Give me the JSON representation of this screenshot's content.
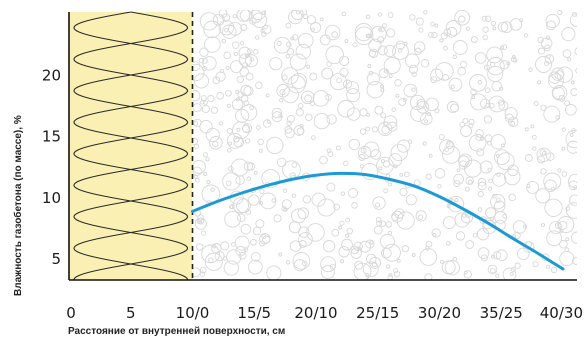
{
  "chart_data": {
    "type": "line",
    "title": "",
    "xlabel": "Расстояние от внутренней поверхности, см",
    "ylabel": "Влажность газобетона (по массе), %",
    "x_ticks": [
      "0",
      "5",
      "10/0",
      "15/5",
      "20/10",
      "25/15",
      "30/20",
      "35/25",
      "40/30"
    ],
    "y_ticks": [
      "5",
      "10",
      "15",
      "20"
    ],
    "x_range": [
      0,
      40
    ],
    "y_range": [
      3.3,
      25
    ],
    "insulation_region_x": [
      0,
      10
    ],
    "series": [
      {
        "color": "#1b9ad6",
        "x": [
          10,
          12,
          14,
          16,
          18,
          20,
          22,
          24,
          26,
          28,
          30,
          32,
          34,
          36,
          38,
          40
        ],
        "y": [
          8.9,
          9.7,
          10.4,
          11.0,
          11.5,
          11.85,
          12.0,
          11.9,
          11.5,
          10.95,
          10.1,
          9.05,
          7.9,
          6.65,
          5.45,
          4.2
        ]
      }
    ],
    "colors": {
      "insulation_fill": "#faf0b4",
      "curve": "#1b9ad6",
      "bubbles": "#d8d8d8",
      "axis": "#111111"
    },
    "grid": false
  }
}
